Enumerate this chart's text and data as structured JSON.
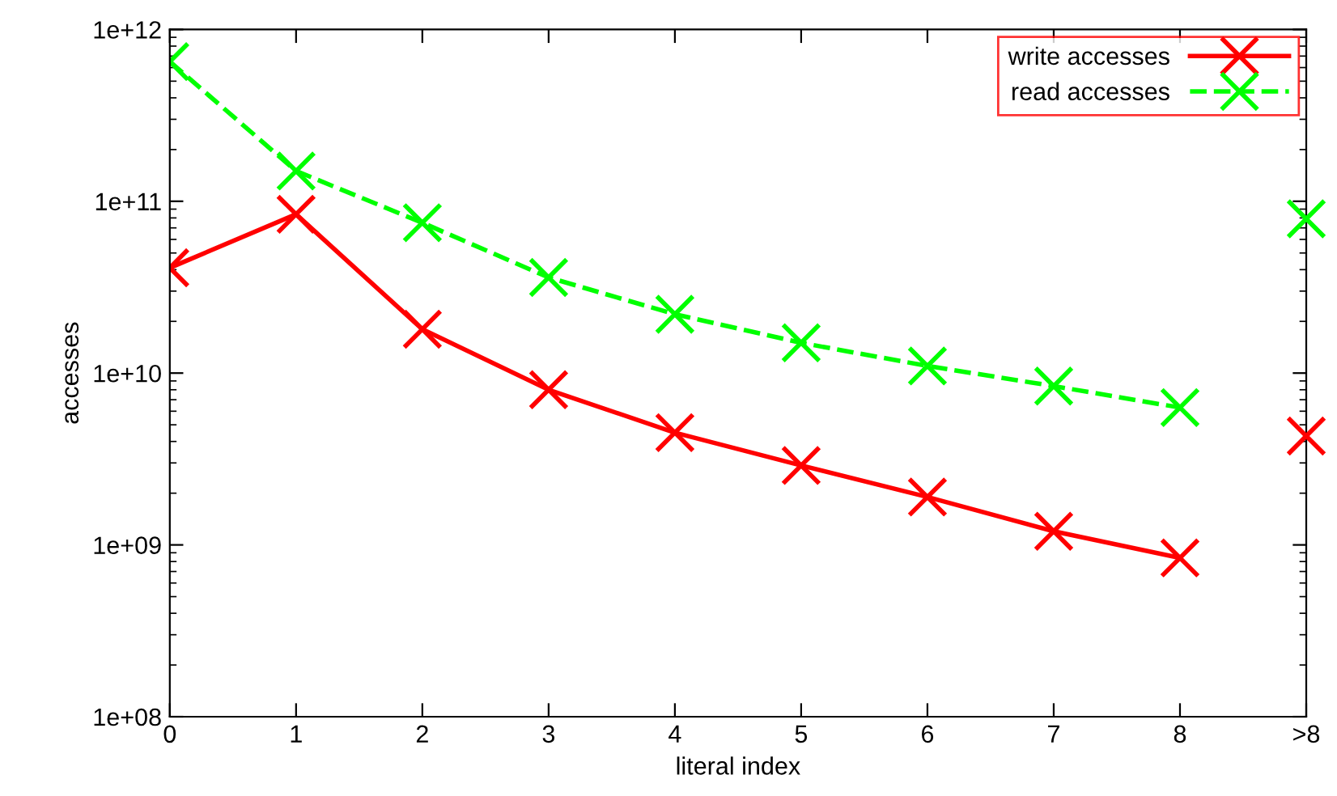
{
  "chart_data": {
    "type": "line",
    "xlabel": "literal index",
    "ylabel": "accesses",
    "categories": [
      "0",
      "1",
      "2",
      "3",
      "4",
      "5",
      "6",
      "7",
      "8",
      ">8"
    ],
    "series": [
      {
        "name": "write accesses",
        "color": "#ff0000",
        "marker": "cross",
        "line_style": "solid",
        "values": [
          41000000000.0,
          84000000000.0,
          18000000000.0,
          8000000000.0,
          4500000000.0,
          2900000000.0,
          1900000000.0,
          1200000000.0,
          840000000.0,
          null
        ]
      },
      {
        "name": "read accesses",
        "color": "#00ff00",
        "marker": "cross",
        "line_style": "dashed",
        "values": [
          650000000000.0,
          150000000000.0,
          75000000000.0,
          36000000000.0,
          22000000000.0,
          15000000000.0,
          11000000000.0,
          8400000000.0,
          6300000000.0,
          null
        ]
      },
      {
        "type": "scatter",
        "color": "#ff0000",
        "marker": "cross",
        "values": [
          null,
          null,
          null,
          null,
          null,
          null,
          null,
          null,
          null,
          4300000000.0
        ]
      },
      {
        "type": "scatter",
        "color": "#00ff00",
        "marker": "cross",
        "values": [
          null,
          null,
          null,
          null,
          null,
          null,
          null,
          null,
          null,
          79000000000.0
        ]
      }
    ],
    "log": "y",
    "ylim": [
      100000000.0,
      1000000000000.0
    ],
    "yticks": [
      {
        "value": 100000000.0,
        "label": "1e+08"
      },
      {
        "value": 1000000000.0,
        "label": "1e+09"
      },
      {
        "value": 10000000000.0,
        "label": "1e+10"
      },
      {
        "value": 100000000000.0,
        "label": "1e+11"
      },
      {
        "value": 1000000000000.0,
        "label": "1e+12"
      }
    ],
    "grid": false,
    "legend": "top right"
  }
}
